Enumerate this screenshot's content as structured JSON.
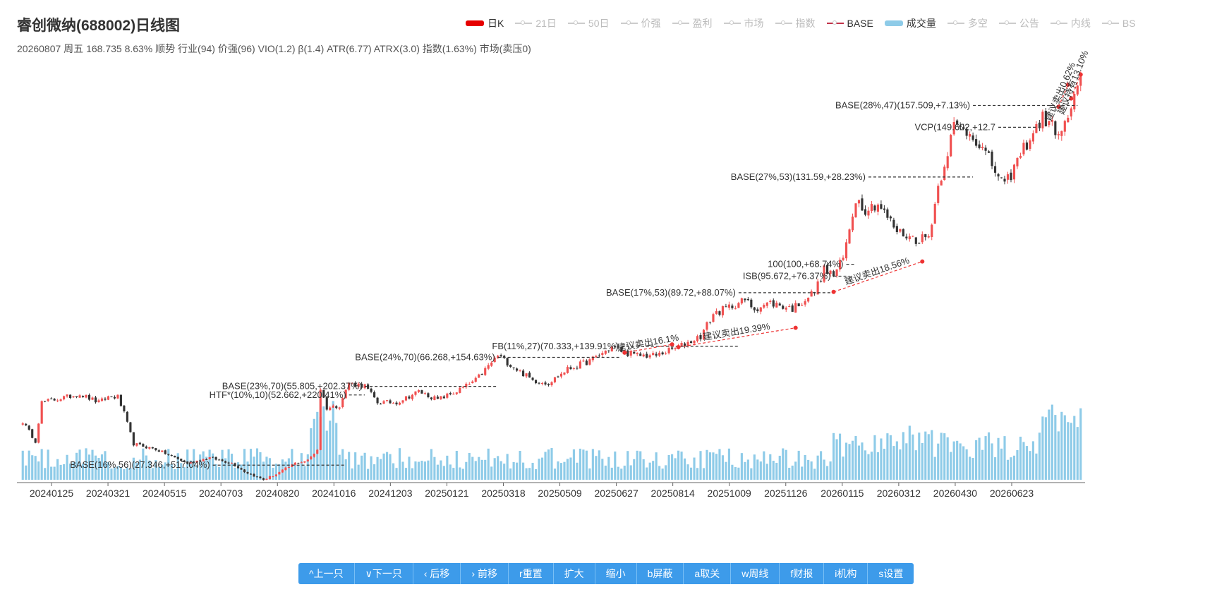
{
  "header": {
    "title": "睿创微纳(688002)日线图",
    "subtitle": "20260807 周五 168.735 8.63% 顺势 行业(94) 价强(96) VIO(1.2) β(1.4) ATR(6.77) ATRX(3.0) 指数(1.63%) 市场(卖压0)"
  },
  "legend": [
    {
      "label": "日K",
      "type": "box",
      "color": "#e60000",
      "active": true
    },
    {
      "label": "21日",
      "type": "line",
      "active": false
    },
    {
      "label": "50日",
      "type": "line",
      "active": false
    },
    {
      "label": "价强",
      "type": "line",
      "active": false
    },
    {
      "label": "盈利",
      "type": "line",
      "active": false
    },
    {
      "label": "市场",
      "type": "line",
      "active": false
    },
    {
      "label": "指数",
      "type": "line",
      "active": false
    },
    {
      "label": "BASE",
      "type": "line",
      "color": "#c2334a",
      "active": true
    },
    {
      "label": "成交量",
      "type": "box",
      "color": "#8ecbe8",
      "active": true
    },
    {
      "label": "多空",
      "type": "line",
      "active": false
    },
    {
      "label": "公告",
      "type": "line",
      "active": false
    },
    {
      "label": "内线",
      "type": "line",
      "active": false
    },
    {
      "label": "BS",
      "type": "line",
      "active": false
    }
  ],
  "toolbar": {
    "buttons": [
      {
        "label": "^上一只"
      },
      {
        "label": "∨下一只"
      },
      {
        "label": "‹ 后移"
      },
      {
        "label": "› 前移"
      },
      {
        "label": "r重置"
      },
      {
        "label": "扩大"
      },
      {
        "label": "缩小"
      },
      {
        "label": "b屏蔽"
      },
      {
        "label": "a取关"
      },
      {
        "label": "w周线"
      },
      {
        "label": "f财报"
      },
      {
        "label": "i机构"
      },
      {
        "label": "s设置"
      }
    ]
  },
  "chart_data": {
    "type": "candlestick",
    "x_ticks": [
      "20240125",
      "20240321",
      "20240515",
      "20240703",
      "20240820",
      "20241016",
      "20241203",
      "20250121",
      "20250318",
      "20250509",
      "20250627",
      "20250814",
      "20251009",
      "20251126",
      "20260115",
      "20260312",
      "20260430",
      "20260623"
    ],
    "ylim": [
      22,
      188
    ],
    "key_points": [
      {
        "t": 0,
        "p": 43
      },
      {
        "t": 4,
        "p": 36
      },
      {
        "t": 6,
        "p": 50
      },
      {
        "t": 18,
        "p": 53
      },
      {
        "t": 24,
        "p": 50
      },
      {
        "t": 27,
        "p": 52
      },
      {
        "t": 30,
        "p": 52
      },
      {
        "t": 32,
        "p": 46
      },
      {
        "t": 35,
        "p": 35
      },
      {
        "t": 42,
        "p": 33
      },
      {
        "t": 48,
        "p": 30
      },
      {
        "t": 52,
        "p": 28
      },
      {
        "t": 59,
        "p": 30
      },
      {
        "t": 66,
        "p": 28
      },
      {
        "t": 70,
        "p": 25
      },
      {
        "t": 76,
        "p": 22
      },
      {
        "t": 80,
        "p": 24
      },
      {
        "t": 86,
        "p": 28
      },
      {
        "t": 90,
        "p": 29
      },
      {
        "t": 93,
        "p": 33
      },
      {
        "t": 94,
        "p": 55
      },
      {
        "t": 96,
        "p": 48
      },
      {
        "t": 100,
        "p": 49
      },
      {
        "t": 103,
        "p": 57
      },
      {
        "t": 108,
        "p": 56
      },
      {
        "t": 112,
        "p": 50
      },
      {
        "t": 118,
        "p": 50
      },
      {
        "t": 125,
        "p": 54
      },
      {
        "t": 131,
        "p": 51
      },
      {
        "t": 137,
        "p": 54
      },
      {
        "t": 143,
        "p": 58
      },
      {
        "t": 150,
        "p": 67
      },
      {
        "t": 156,
        "p": 62
      },
      {
        "t": 161,
        "p": 58
      },
      {
        "t": 166,
        "p": 57
      },
      {
        "t": 172,
        "p": 62
      },
      {
        "t": 179,
        "p": 65
      },
      {
        "t": 186,
        "p": 70
      },
      {
        "t": 193,
        "p": 67
      },
      {
        "t": 200,
        "p": 67
      },
      {
        "t": 207,
        "p": 70
      },
      {
        "t": 214,
        "p": 74
      },
      {
        "t": 218,
        "p": 82
      },
      {
        "t": 222,
        "p": 84
      },
      {
        "t": 228,
        "p": 87
      },
      {
        "t": 231,
        "p": 84
      },
      {
        "t": 236,
        "p": 86
      },
      {
        "t": 243,
        "p": 84
      },
      {
        "t": 250,
        "p": 90
      },
      {
        "t": 253,
        "p": 98
      },
      {
        "t": 256,
        "p": 96
      },
      {
        "t": 259,
        "p": 102
      },
      {
        "t": 263,
        "p": 124
      },
      {
        "t": 266,
        "p": 120
      },
      {
        "t": 270,
        "p": 122
      },
      {
        "t": 276,
        "p": 112
      },
      {
        "t": 282,
        "p": 109
      },
      {
        "t": 286,
        "p": 110
      },
      {
        "t": 289,
        "p": 128
      },
      {
        "t": 294,
        "p": 150
      },
      {
        "t": 300,
        "p": 147
      },
      {
        "t": 305,
        "p": 138
      },
      {
        "t": 310,
        "p": 128
      },
      {
        "t": 316,
        "p": 142
      },
      {
        "t": 322,
        "p": 153
      },
      {
        "t": 328,
        "p": 147
      },
      {
        "t": 332,
        "p": 160
      },
      {
        "t": 334,
        "p": 168.7
      }
    ],
    "annotations": [
      {
        "label": "BASE(16%,56)(27.346,+517.04%)",
        "t0": 60,
        "t1": 102,
        "p": 27.3
      },
      {
        "label": "HTF*(10%,10)(52.662,+220.41%)",
        "t0": 103,
        "t1": 108,
        "p": 52.7
      },
      {
        "label": "BASE(23%,70)(55.805,+202.37%)",
        "t0": 108,
        "t1": 150,
        "p": 55.8
      },
      {
        "label": "BASE(24%,70)(66.268,+154.63%)",
        "t0": 150,
        "t1": 189,
        "p": 66.3
      },
      {
        "label": "FB(11%,27)(70.333,+139.91%)",
        "t0": 189,
        "t1": 226,
        "p": 70.3
      },
      {
        "label": "BASE(17%,53)(89.72,+88.07%)",
        "t0": 226,
        "t1": 256,
        "p": 89.7
      },
      {
        "label": "ISB(95.672,+76.37%)",
        "t0": 256,
        "t1": 260,
        "p": 95.7
      },
      {
        "label": "100(100,+68.74%)",
        "t0": 260,
        "t1": 263,
        "p": 100
      },
      {
        "label": "BASE(27%,53)(131.59,+28.23%)",
        "t0": 267,
        "t1": 300,
        "p": 131.6
      },
      {
        "label": "BASE(28%,47)(157.509,+7.13%)",
        "t0": 300,
        "t1": 333,
        "p": 157.5
      },
      {
        "label": "VCP(149.602,+12.7",
        "t0": 308,
        "t1": 320,
        "p": 149.6
      }
    ],
    "signals": [
      {
        "label": "建议卖出16.1%",
        "t0": 190,
        "p0": 68,
        "t1": 205,
        "p1": 71
      },
      {
        "label": "建议卖出19.39%",
        "t0": 207,
        "p0": 70,
        "t1": 244,
        "p1": 77
      },
      {
        "label": "建议卖出18.56%",
        "t0": 256,
        "p0": 90,
        "t1": 284,
        "p1": 101
      },
      {
        "label": "建议卖出0.62%",
        "t0": 327,
        "p0": 157,
        "t1": 330,
        "p1": 165
      },
      {
        "label": "建议持有13.10%",
        "t0": 331,
        "p0": 160,
        "t1": 334,
        "p1": 168.7
      }
    ]
  }
}
